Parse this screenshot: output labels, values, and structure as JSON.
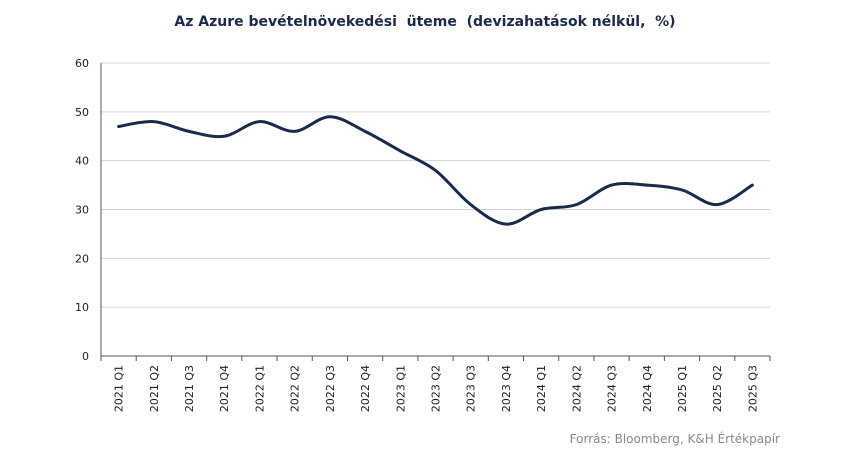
{
  "chart_data": {
    "type": "line",
    "title": "Az Azure bevételnövekedési  üteme  (devizahatások nélkül,  %)",
    "categories": [
      "2021 Q1",
      "2021 Q2",
      "2021 Q3",
      "2021 Q4",
      "2022 Q1",
      "2022 Q2",
      "2022 Q3",
      "2022 Q4",
      "2023 Q1",
      "2023 Q2",
      "2023 Q3",
      "2023 Q4",
      "2024 Q1",
      "2024 Q2",
      "2024 Q3",
      "2024 Q4",
      "2025 Q1",
      "2025 Q2",
      "2025 Q3"
    ],
    "series": [
      {
        "values": [
          47,
          48,
          46,
          45,
          48,
          46,
          49,
          46,
          42,
          38,
          31,
          27,
          30,
          31,
          35,
          35,
          34,
          31,
          35
        ],
        "color": "#1b2a4a"
      }
    ],
    "ylim": [
      0,
      60
    ],
    "yticks": [
      0,
      10,
      20,
      30,
      40,
      50,
      60
    ],
    "grid": true,
    "legend": "none",
    "source": "Forrás: Bloomberg,  K&H Értékpapír"
  }
}
